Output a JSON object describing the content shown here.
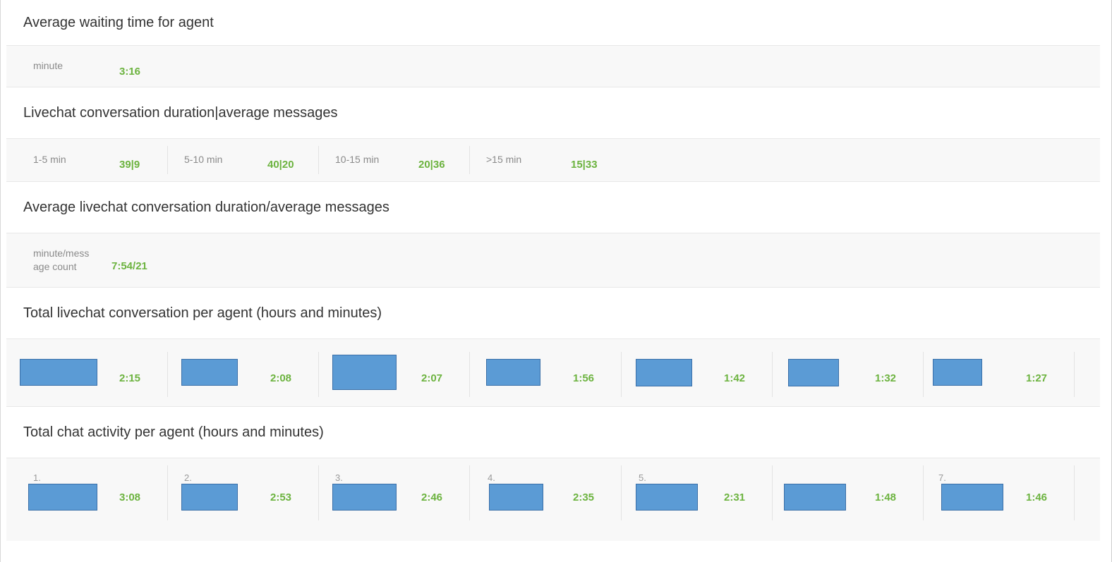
{
  "sections": {
    "waiting": {
      "title": "Average waiting time for agent",
      "label": "minute",
      "value": "3:16"
    },
    "duration": {
      "title": "Livechat conversation duration|average messages",
      "buckets": [
        {
          "label": "1-5 min",
          "value": "39|9"
        },
        {
          "label": "5-10 min",
          "value": "40|20"
        },
        {
          "label": "10-15 min",
          "value": "20|36"
        },
        {
          "label": ">15 min",
          "value": "15|33"
        }
      ]
    },
    "average": {
      "title": "Average livechat conversation duration/average messages",
      "label_line1": "minute/mess",
      "label_line2": "age count",
      "value": "7:54/21"
    },
    "per_agent": {
      "title": "Total livechat conversation per agent (hours and minutes)",
      "values": [
        "2:15",
        "2:08",
        "2:07",
        "1:56",
        "1:42",
        "1:32",
        "1:27"
      ]
    },
    "activity": {
      "title": "Total chat activity per agent (hours and minutes)",
      "ranks": [
        "1.",
        "2.",
        "3.",
        "4.",
        "5.",
        "",
        "7."
      ],
      "values": [
        "3:08",
        "2:53",
        "2:46",
        "2:35",
        "2:31",
        "1:48",
        "1:46"
      ]
    }
  },
  "colors": {
    "value_green": "#6cb33f",
    "redaction_blue": "#5b9bd5",
    "panel_bg": "#f8f8f8"
  }
}
